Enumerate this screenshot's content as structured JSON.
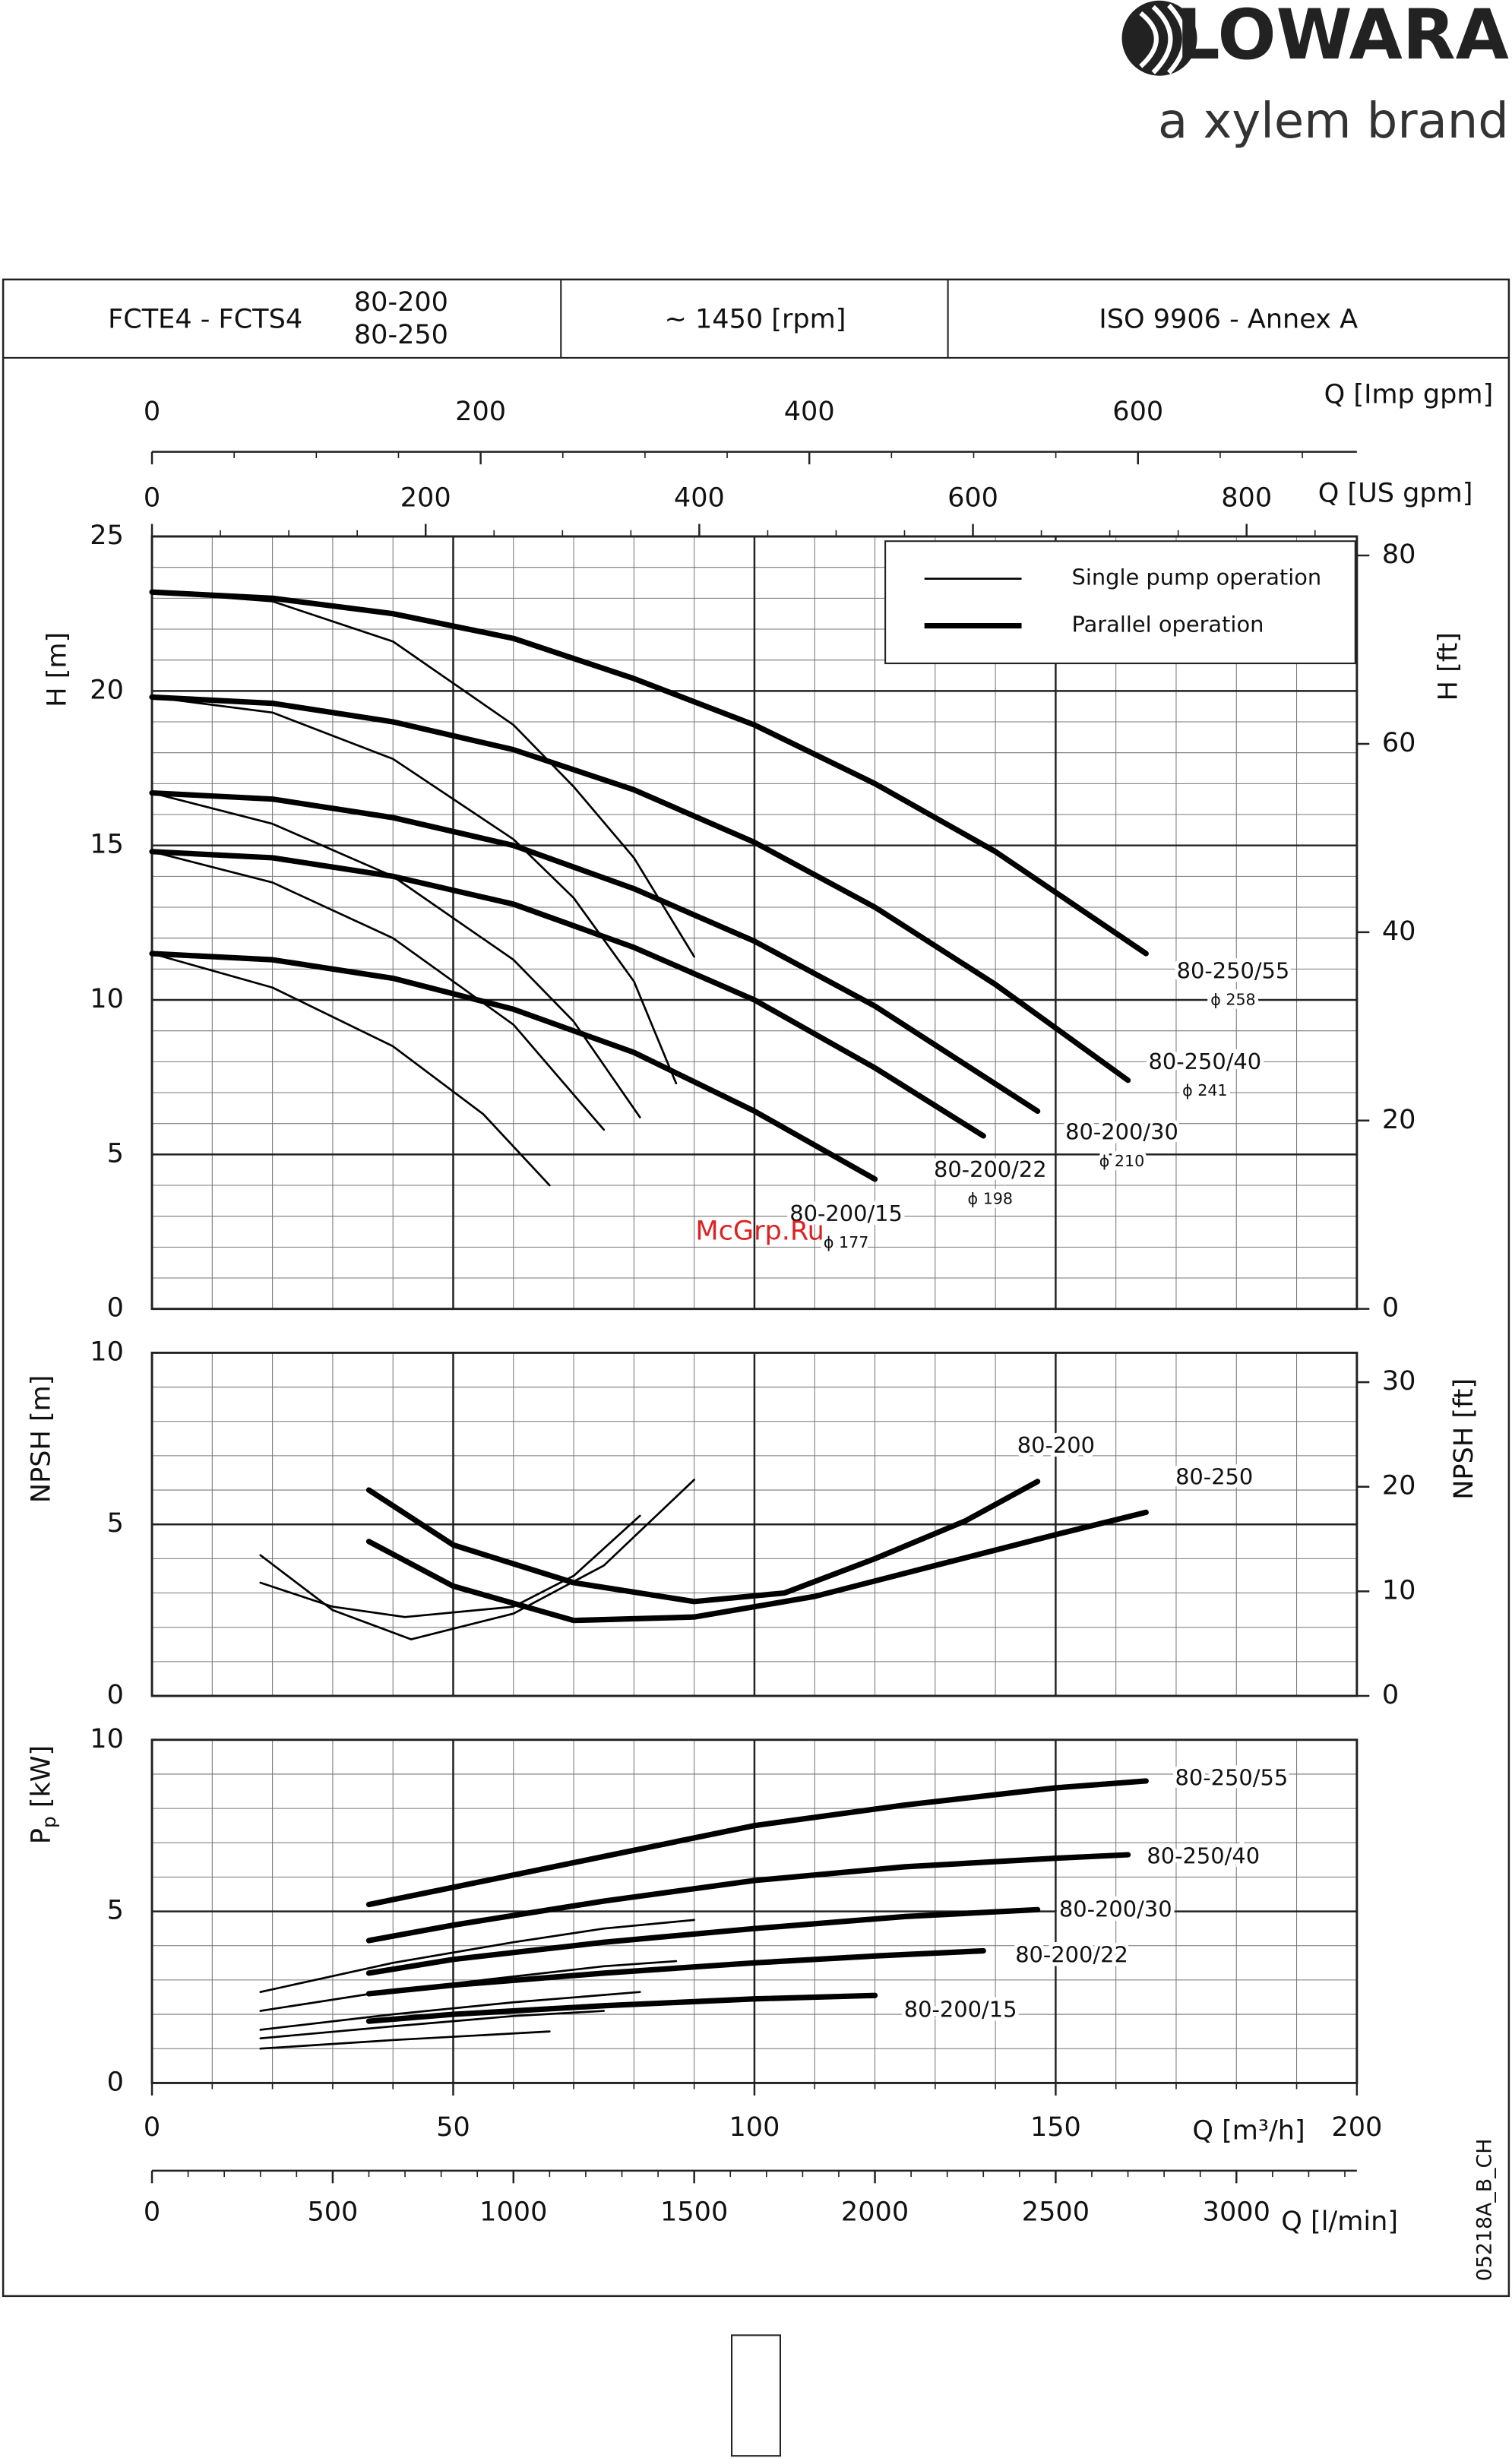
{
  "logo": {
    "brand": "LOWARA",
    "tagline": "a xylem brand"
  },
  "header": {
    "series": "FCTE4 - FCTS4",
    "models": [
      "80-200",
      "80-250"
    ],
    "speed": "~ 1450 [rpm]",
    "standard": "ISO 9906 - Annex A"
  },
  "code": "05218A_B_CH",
  "watermark": "McGrp.Ru",
  "chart_data": [
    {
      "type": "line",
      "color": "#000000",
      "y_label": "H [m]",
      "y2_label": "H [ft]",
      "xlim": [
        0,
        200
      ],
      "xticks": [
        0,
        50,
        100,
        150,
        200
      ],
      "ylim": [
        0,
        25
      ],
      "yticks": [
        0,
        5,
        10,
        15,
        20,
        25
      ],
      "y2lim": [
        0,
        82.02
      ],
      "y2ticks": [
        0,
        20,
        40,
        60,
        80
      ],
      "grid": true,
      "minor_grid": {
        "x": 10,
        "y": 1
      },
      "top_axes": [
        {
          "label": "Q [Imp gpm]",
          "xlim": [
            0,
            733.2
          ],
          "ticks": [
            0,
            200,
            400,
            600
          ],
          "minor": 50
        },
        {
          "label": "Q [US gpm]",
          "xlim": [
            0,
            880.6
          ],
          "ticks": [
            0,
            200,
            400,
            600,
            800
          ],
          "minor": 50
        }
      ],
      "legend": {
        "corner": "upper right",
        "entries": [
          {
            "label": "Single pump operation",
            "linewidth": 1.3
          },
          {
            "label": "Parallel operation",
            "linewidth": 3.5
          }
        ]
      },
      "annotations": [
        {
          "text": "80-250/55",
          "sub": "ϕ 258"
        },
        {
          "text": "80-250/40",
          "sub": "ϕ 241"
        },
        {
          "text": "80-200/30",
          "sub": "ϕ 210"
        },
        {
          "text": "80-200/22",
          "sub": "ϕ 198"
        },
        {
          "text": "80-200/15",
          "sub": "ϕ 177"
        }
      ],
      "series": [
        {
          "linewidth": 1.3,
          "x": [
            0,
            20,
            40,
            60,
            70,
            80,
            90
          ],
          "values": [
            23.2,
            22.9,
            21.6,
            18.9,
            16.9,
            14.6,
            11.4
          ]
        },
        {
          "linewidth": 1.3,
          "x": [
            0,
            20,
            40,
            60,
            70,
            80,
            87
          ],
          "values": [
            19.8,
            19.3,
            17.8,
            15.2,
            13.3,
            10.6,
            7.3
          ]
        },
        {
          "linewidth": 1.3,
          "x": [
            0,
            20,
            40,
            60,
            70,
            81
          ],
          "values": [
            16.7,
            15.7,
            14.0,
            11.3,
            9.3,
            6.2
          ]
        },
        {
          "linewidth": 1.3,
          "x": [
            0,
            20,
            40,
            60,
            75
          ],
          "values": [
            14.8,
            13.8,
            12.0,
            9.2,
            5.8
          ]
        },
        {
          "linewidth": 1.3,
          "x": [
            0,
            20,
            40,
            55,
            66
          ],
          "values": [
            11.5,
            10.4,
            8.5,
            6.3,
            4.0
          ]
        },
        {
          "linewidth": 3.5,
          "x": [
            0,
            20,
            40,
            60,
            80,
            100,
            120,
            140,
            165
          ],
          "values": [
            23.2,
            23.0,
            22.5,
            21.7,
            20.4,
            18.9,
            17.0,
            14.8,
            11.5
          ]
        },
        {
          "linewidth": 3.5,
          "x": [
            0,
            20,
            40,
            60,
            80,
            100,
            120,
            140,
            162
          ],
          "values": [
            19.8,
            19.6,
            19.0,
            18.1,
            16.8,
            15.1,
            13.0,
            10.5,
            7.4
          ]
        },
        {
          "linewidth": 3.5,
          "x": [
            0,
            20,
            40,
            60,
            80,
            100,
            120,
            147
          ],
          "values": [
            16.7,
            16.5,
            15.9,
            15.0,
            13.6,
            11.9,
            9.8,
            6.4
          ]
        },
        {
          "linewidth": 3.5,
          "x": [
            0,
            20,
            40,
            60,
            80,
            100,
            120,
            138
          ],
          "values": [
            14.8,
            14.6,
            14.0,
            13.1,
            11.7,
            10.0,
            7.8,
            5.6
          ]
        },
        {
          "linewidth": 3.5,
          "x": [
            0,
            20,
            40,
            60,
            80,
            100,
            120
          ],
          "values": [
            11.5,
            11.3,
            10.7,
            9.7,
            8.3,
            6.4,
            4.2
          ]
        }
      ]
    },
    {
      "type": "line",
      "color": "#000000",
      "y_label": "NPSH [m]",
      "y2_label": "NPSH [ft]",
      "xlim": [
        0,
        200
      ],
      "xticks": [
        0,
        50,
        100,
        150,
        200
      ],
      "ylim": [
        0,
        10
      ],
      "yticks": [
        0,
        5,
        10
      ],
      "y2lim": [
        0,
        32.81
      ],
      "y2ticks": [
        0,
        10,
        20,
        30
      ],
      "grid": true,
      "minor_grid": {
        "x": 10,
        "y": 1
      },
      "annotations": [
        {
          "text": "80-200"
        },
        {
          "text": "80-250"
        }
      ],
      "series": [
        {
          "linewidth": 1.3,
          "x": [
            18,
            30,
            43,
            60,
            75,
            90
          ],
          "values": [
            4.1,
            2.5,
            1.65,
            2.4,
            3.8,
            6.3
          ]
        },
        {
          "linewidth": 1.3,
          "x": [
            18,
            30,
            42,
            60,
            70,
            81
          ],
          "values": [
            3.3,
            2.6,
            2.3,
            2.6,
            3.5,
            5.25
          ]
        },
        {
          "linewidth": 3.5,
          "x": [
            36,
            50,
            70,
            90,
            105,
            120,
            135,
            147
          ],
          "values": [
            6.0,
            4.4,
            3.3,
            2.75,
            3.0,
            4.0,
            5.1,
            6.25
          ]
        },
        {
          "linewidth": 3.5,
          "x": [
            36,
            50,
            70,
            90,
            110,
            130,
            150,
            165
          ],
          "values": [
            4.5,
            3.2,
            2.2,
            2.3,
            2.9,
            3.8,
            4.7,
            5.35
          ]
        }
      ]
    },
    {
      "type": "line",
      "color": "#000000",
      "y_label": {
        "main": "P",
        "sub": "p",
        "rest": " [kW]"
      },
      "x_label": "Q [m³/h]",
      "xlim": [
        0,
        200
      ],
      "xticks": [
        0,
        50,
        100,
        150,
        200
      ],
      "ylim": [
        0,
        10
      ],
      "yticks": [
        0,
        5,
        10
      ],
      "grid": true,
      "minor_grid": {
        "x": 10,
        "y": 1
      },
      "bottom_axis": {
        "label": "Q [l/min]",
        "xlim": [
          0,
          3333.3
        ],
        "ticks": [
          0,
          500,
          1000,
          1500,
          2000,
          2500,
          3000
        ],
        "minor": 100
      },
      "annotations": [
        {
          "text": "80-250/55"
        },
        {
          "text": "80-250/40"
        },
        {
          "text": "80-200/30"
        },
        {
          "text": "80-200/22"
        },
        {
          "text": "80-200/15"
        }
      ],
      "series": [
        {
          "linewidth": 1.3,
          "x": [
            18,
            40,
            60,
            75,
            90
          ],
          "values": [
            2.65,
            3.5,
            4.1,
            4.5,
            4.75
          ]
        },
        {
          "linewidth": 1.3,
          "x": [
            18,
            40,
            60,
            75,
            87
          ],
          "values": [
            2.1,
            2.7,
            3.1,
            3.4,
            3.55
          ]
        },
        {
          "linewidth": 1.3,
          "x": [
            18,
            40,
            60,
            81
          ],
          "values": [
            1.55,
            2.0,
            2.35,
            2.65
          ]
        },
        {
          "linewidth": 1.3,
          "x": [
            18,
            40,
            60,
            75
          ],
          "values": [
            1.3,
            1.65,
            1.95,
            2.1
          ]
        },
        {
          "linewidth": 1.3,
          "x": [
            18,
            40,
            66
          ],
          "values": [
            1.0,
            1.25,
            1.5
          ]
        },
        {
          "linewidth": 3.5,
          "x": [
            36,
            50,
            75,
            100,
            125,
            150,
            165
          ],
          "values": [
            5.2,
            5.7,
            6.6,
            7.5,
            8.1,
            8.6,
            8.8
          ]
        },
        {
          "linewidth": 3.5,
          "x": [
            36,
            50,
            75,
            100,
            125,
            150,
            162
          ],
          "values": [
            4.15,
            4.6,
            5.3,
            5.9,
            6.3,
            6.55,
            6.65
          ]
        },
        {
          "linewidth": 3.5,
          "x": [
            36,
            50,
            75,
            100,
            125,
            147
          ],
          "values": [
            3.2,
            3.6,
            4.1,
            4.5,
            4.85,
            5.05
          ]
        },
        {
          "linewidth": 3.5,
          "x": [
            36,
            50,
            75,
            100,
            120,
            138
          ],
          "values": [
            2.6,
            2.85,
            3.2,
            3.5,
            3.7,
            3.85
          ]
        },
        {
          "linewidth": 3.5,
          "x": [
            36,
            50,
            75,
            100,
            120
          ],
          "values": [
            1.8,
            2.0,
            2.25,
            2.45,
            2.55
          ]
        }
      ]
    }
  ]
}
